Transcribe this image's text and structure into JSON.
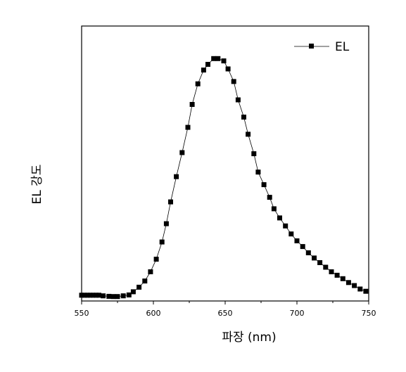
{
  "chart_data": {
    "type": "line",
    "title": "",
    "xlabel": "파장 (nm)",
    "ylabel": "EL 강도",
    "xlim": [
      550,
      750
    ],
    "ylim": [
      0,
      1.0
    ],
    "x_ticks": [
      550,
      600,
      650,
      700,
      750
    ],
    "x_tick_labels": [
      "550",
      "600",
      "650",
      "700",
      "750"
    ],
    "y_tick_labels_shown": false,
    "grid": false,
    "legend": {
      "position": "top-right",
      "entries": [
        "EL"
      ]
    },
    "series": [
      {
        "name": "EL",
        "marker": "square",
        "color": "#000000",
        "x": [
          550,
          552,
          554,
          556,
          558,
          560,
          562,
          565,
          569,
          572,
          575,
          579,
          583,
          586,
          590,
          594,
          598,
          602,
          606,
          609,
          612,
          616,
          620,
          624,
          627,
          631,
          635,
          638,
          642,
          645,
          649,
          652,
          656,
          659,
          663,
          666,
          670,
          673,
          677,
          681,
          684,
          688,
          692,
          696,
          700,
          704,
          708,
          712,
          716,
          720,
          724,
          728,
          732,
          736,
          740,
          744,
          748
        ],
        "y": [
          0.013,
          0.013,
          0.013,
          0.013,
          0.013,
          0.013,
          0.013,
          0.01,
          0.008,
          0.007,
          0.007,
          0.01,
          0.014,
          0.028,
          0.048,
          0.075,
          0.115,
          0.17,
          0.245,
          0.325,
          0.42,
          0.53,
          0.635,
          0.745,
          0.845,
          0.935,
          0.995,
          1.02,
          1.045,
          1.045,
          1.035,
          1.0,
          0.945,
          0.865,
          0.79,
          0.715,
          0.63,
          0.55,
          0.495,
          0.44,
          0.39,
          0.35,
          0.315,
          0.28,
          0.25,
          0.225,
          0.198,
          0.175,
          0.155,
          0.135,
          0.115,
          0.1,
          0.085,
          0.068,
          0.055,
          0.04,
          0.03
        ]
      }
    ]
  }
}
